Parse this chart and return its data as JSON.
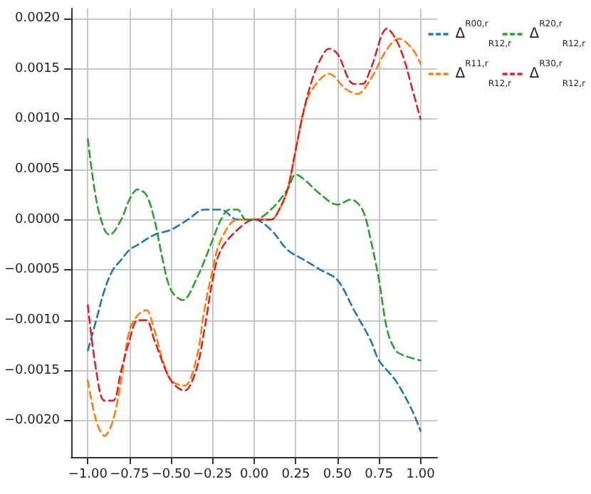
{
  "chart_data": {
    "type": "line",
    "line_style": "dashed",
    "marker": "none",
    "grid": true,
    "legend": "top right",
    "xlim": [
      -1.1,
      1.1
    ],
    "xticks": [
      {
        "value": -1,
        "label": "−1.00"
      },
      {
        "value": -0.75,
        "label": "−0.75"
      },
      {
        "value": -0.5,
        "label": "−0.50"
      },
      {
        "value": -0.25,
        "label": "−0.25"
      },
      {
        "value": 0,
        "label": "0.00"
      },
      {
        "value": 0.25,
        "label": "0.25"
      },
      {
        "value": 0.5,
        "label": "0.50"
      },
      {
        "value": 0.75,
        "label": "0.75"
      },
      {
        "value": 1,
        "label": "1.00"
      }
    ],
    "ylim": [
      -0.00236,
      0.0021
    ],
    "yticks": [
      {
        "value": -0.002,
        "label": "−0.0020"
      },
      {
        "value": -0.0015,
        "label": "−0.0015"
      },
      {
        "value": -0.001,
        "label": "−0.0010"
      },
      {
        "value": -0.0005,
        "label": "−0.0005"
      },
      {
        "value": 0,
        "label": "0.0000"
      },
      {
        "value": 0.0005,
        "label": "0.0005"
      },
      {
        "value": 0.001,
        "label": "0.0010"
      },
      {
        "value": 0.0015,
        "label": "0.0015"
      },
      {
        "value": 0.002,
        "label": "0.0020"
      }
    ],
    "series": [
      {
        "name": "Δ$^{R00,r}$$_{R12,r}$",
        "color": "#1f77b4",
        "x": [
          -1,
          -0.95,
          -0.9,
          -0.85,
          -0.8,
          -0.75,
          -0.7,
          -0.6,
          -0.5,
          -0.4,
          -0.3,
          -0.2,
          -0.1,
          0,
          0.1,
          0.2,
          0.3,
          0.4,
          0.5,
          0.6,
          0.7,
          0.75,
          0.85,
          0.95,
          1
        ],
        "values": [
          -0.0013,
          -0.001,
          -0.0007,
          -0.0005,
          -0.0004,
          -0.0003,
          -0.00025,
          -0.00015,
          -0.0001,
          0.0,
          0.0001,
          0.0001,
          0.0,
          0.0,
          -0.0001,
          -0.0003,
          -0.0004,
          -0.0005,
          -0.0006,
          -0.0009,
          -0.0012,
          -0.0014,
          -0.0016,
          -0.0019,
          -0.0021
        ]
      },
      {
        "name": "Δ$^{R11,r}$$_{R12,r}$",
        "color": "#ff7f0e",
        "x": [
          -1,
          -0.95,
          -0.9,
          -0.85,
          -0.8,
          -0.75,
          -0.7,
          -0.65,
          -0.6,
          -0.55,
          -0.5,
          -0.42,
          -0.35,
          -0.3,
          -0.25,
          -0.2,
          -0.1,
          0,
          0.1,
          0.15,
          0.2,
          0.25,
          0.3,
          0.35,
          0.45,
          0.55,
          0.62,
          0.7,
          0.8,
          0.87,
          0.95,
          1
        ],
        "values": [
          -0.0016,
          -0.002,
          -0.00215,
          -0.002,
          -0.0016,
          -0.0011,
          -0.00095,
          -0.0009,
          -0.0011,
          -0.0014,
          -0.0016,
          -0.00165,
          -0.0014,
          -0.0009,
          -0.0005,
          -0.0002,
          0.0,
          0.0,
          0.0,
          0.0001,
          0.0003,
          0.0007,
          0.0011,
          0.0013,
          0.00145,
          0.0013,
          0.00125,
          0.0014,
          0.0017,
          0.0018,
          0.0017,
          0.00155
        ]
      },
      {
        "name": "Δ$^{R20,r}$$_{R12,r}$",
        "color": "#2ca02c",
        "x": [
          -1,
          -0.95,
          -0.9,
          -0.87,
          -0.8,
          -0.75,
          -0.7,
          -0.65,
          -0.6,
          -0.55,
          -0.5,
          -0.43,
          -0.35,
          -0.25,
          -0.2,
          -0.15,
          -0.1,
          -0.05,
          0,
          0.1,
          0.2,
          0.25,
          0.3,
          0.4,
          0.5,
          0.58,
          0.65,
          0.7,
          0.75,
          0.8,
          0.85,
          0.9,
          1
        ],
        "values": [
          0.0008,
          0.0002,
          -0.0001,
          -0.00015,
          0.0,
          0.0002,
          0.0003,
          0.00025,
          0.0,
          -0.0004,
          -0.0007,
          -0.0008,
          -0.0006,
          -0.0002,
          0.0,
          0.0001,
          0.0001,
          0.0,
          0.0,
          0.0001,
          0.0003,
          0.00045,
          0.0004,
          0.00025,
          0.00015,
          0.0002,
          0.0001,
          -0.0002,
          -0.0006,
          -0.0011,
          -0.0013,
          -0.00135,
          -0.0014
        ]
      },
      {
        "name": "Δ$^{R30,r}$$_{R12,r}$",
        "color": "#d62728",
        "x": [
          -1,
          -0.95,
          -0.9,
          -0.85,
          -0.8,
          -0.75,
          -0.7,
          -0.65,
          -0.6,
          -0.5,
          -0.42,
          -0.35,
          -0.3,
          -0.25,
          -0.2,
          -0.1,
          0,
          0.1,
          0.15,
          0.2,
          0.25,
          0.3,
          0.35,
          0.4,
          0.45,
          0.5,
          0.6,
          0.65,
          0.7,
          0.8,
          0.85,
          0.9,
          0.95,
          1
        ],
        "values": [
          -0.00085,
          -0.0015,
          -0.0018,
          -0.0018,
          -0.0015,
          -0.0012,
          -0.001,
          -0.001,
          -0.0012,
          -0.0016,
          -0.0017,
          -0.0015,
          -0.0011,
          -0.0006,
          -0.0003,
          -0.0001,
          0.0,
          0.0,
          0.0001,
          0.0003,
          0.0007,
          0.0011,
          0.0014,
          0.0016,
          0.0017,
          0.00165,
          0.00135,
          0.00135,
          0.0015,
          0.0019,
          0.0018,
          0.0016,
          0.0013,
          0.001
        ]
      }
    ]
  }
}
